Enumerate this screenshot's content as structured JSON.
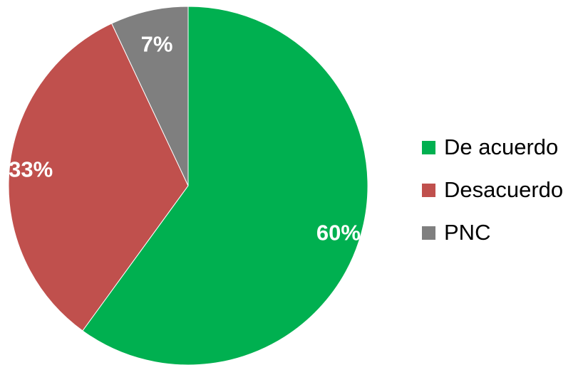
{
  "chart_data": {
    "type": "pie",
    "title": "",
    "categories": [
      "De acuerdo",
      "Desacuerdo",
      "PNC"
    ],
    "values": [
      60,
      33,
      7
    ],
    "data_labels": [
      "60%",
      "33%",
      "7%"
    ],
    "colors": [
      "#00b050",
      "#c0504d",
      "#7f7f7f"
    ],
    "start_angle": "top (12 o'clock), clockwise",
    "legend_position": "right",
    "label_color": "#ffffff"
  }
}
